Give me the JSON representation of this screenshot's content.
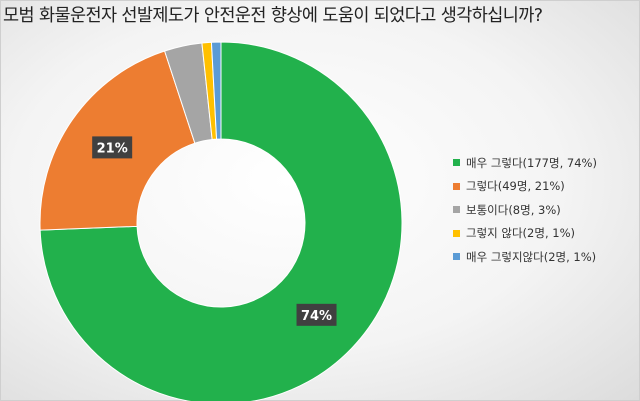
{
  "chart_data": {
    "type": "pie",
    "subtype": "donut",
    "title": "모범 화물운전자 선발제도가 안전운전 향상에 도움이 되었다고 생각하십니까?",
    "legend_position": "right",
    "slices": [
      {
        "label": "매우 그렇다",
        "count": 177,
        "percent": 74,
        "legend": "매우 그렇다(177명, 74%)",
        "data_label": "74%",
        "color": "#22b14c"
      },
      {
        "label": "그렇다",
        "count": 49,
        "percent": 21,
        "legend": "그렇다(49명, 21%)",
        "data_label": "21%",
        "color": "#ed7d31"
      },
      {
        "label": "보통이다",
        "count": 8,
        "percent": 3,
        "legend": "보통이다(8명, 3%)",
        "data_label": "",
        "color": "#a5a5a5"
      },
      {
        "label": "그렇지 않다",
        "count": 2,
        "percent": 1,
        "legend": "그렇지 않다(2명, 1%)",
        "data_label": "",
        "color": "#ffc000"
      },
      {
        "label": "매우 그렇지않다",
        "count": 2,
        "percent": 1,
        "legend": "매우 그렇지않다(2명, 1%)",
        "data_label": "",
        "color": "#5b9bd5"
      }
    ]
  }
}
